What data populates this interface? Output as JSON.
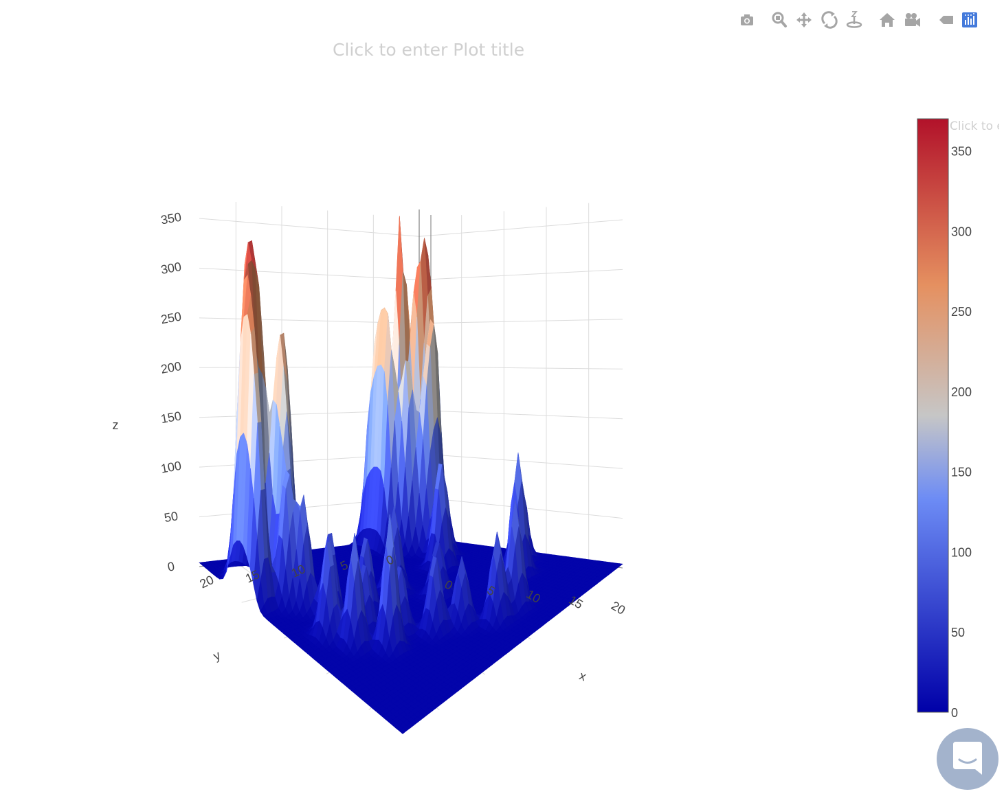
{
  "toolbar": {
    "buttons": [
      {
        "name": "camera-icon",
        "label": "Download plot as a png"
      },
      {
        "name": "zoom-icon",
        "label": "Zoom"
      },
      {
        "name": "pan-icon",
        "label": "Pan"
      },
      {
        "name": "orbit-rotation-icon",
        "label": "Orbital rotation"
      },
      {
        "name": "turntable-rotation-icon",
        "label": "Turntable rotation"
      },
      {
        "name": "home-icon",
        "label": "Reset camera to default"
      },
      {
        "name": "video-camera-icon",
        "label": "Reset camera to last save"
      },
      {
        "name": "hover-tag-icon",
        "label": "Toggle show closest data on hover"
      },
      {
        "name": "plotly-logo-icon",
        "label": "Produced with Plotly"
      }
    ],
    "icon_color": "#a5a5a5",
    "logo_color": "#447adb"
  },
  "plot_title_placeholder": "Click to enter Plot title",
  "colorbar_title_placeholder": "Click to enter",
  "chart_data": {
    "type": "surface",
    "colorscale": [
      [
        0,
        "#0000a8"
      ],
      [
        0.36,
        "#6d8cf5"
      ],
      [
        0.5,
        "#c6c6c6"
      ],
      [
        0.72,
        "#e59060"
      ],
      [
        1,
        "#b2122a"
      ]
    ],
    "x": {
      "label": "x",
      "ticks": [
        0,
        5,
        10,
        15,
        20
      ],
      "range": [
        0,
        24
      ]
    },
    "y": {
      "label": "y",
      "ticks": [
        0,
        5,
        10,
        15,
        20
      ],
      "range": [
        0,
        24
      ]
    },
    "z": {
      "label": "z",
      "ticks": [
        0,
        50,
        100,
        150,
        200,
        250,
        300,
        350
      ],
      "range": [
        0,
        370
      ]
    },
    "colorbar": {
      "ticks": [
        0,
        50,
        100,
        150,
        200,
        250,
        300,
        350
      ],
      "range": [
        0,
        370
      ]
    },
    "peaks": [
      {
        "x": 2,
        "y": 4,
        "z": 365
      },
      {
        "x": 3,
        "y": 3,
        "z": 250
      },
      {
        "x": 3,
        "y": 2,
        "z": 240
      },
      {
        "x": 5,
        "y": 3,
        "z": 230
      },
      {
        "x": 4,
        "y": 5,
        "z": 210
      },
      {
        "x": 3,
        "y": 6,
        "z": 205
      },
      {
        "x": 2,
        "y": 6,
        "z": 195
      },
      {
        "x": 1,
        "y": 6,
        "z": 170
      },
      {
        "x": 4,
        "y": 2,
        "z": 170
      },
      {
        "x": 5,
        "y": 4,
        "z": 150
      },
      {
        "x": 7,
        "y": 4,
        "z": 100
      },
      {
        "x": 9,
        "y": 6,
        "z": 120
      },
      {
        "x": 10,
        "y": 12,
        "z": 90
      },
      {
        "x": 13,
        "y": 10,
        "z": 60
      },
      {
        "x": 16,
        "y": 4,
        "z": 130
      },
      {
        "x": 14,
        "y": 2,
        "z": 100
      },
      {
        "x": 5,
        "y": 19,
        "z": 170
      },
      {
        "x": 5,
        "y": 20,
        "z": 190
      },
      {
        "x": 4,
        "y": 21,
        "z": 200
      },
      {
        "x": 4,
        "y": 22,
        "z": 200
      },
      {
        "x": 3,
        "y": 22,
        "z": 210
      },
      {
        "x": 5,
        "y": 23,
        "z": 225
      },
      {
        "x": 4,
        "y": 23,
        "z": 200
      },
      {
        "x": 3,
        "y": 21,
        "z": 170
      },
      {
        "x": 6,
        "y": 23,
        "z": 150
      },
      {
        "x": 6,
        "y": 20,
        "z": 140
      },
      {
        "x": 7,
        "y": 21,
        "z": 130
      },
      {
        "x": 8,
        "y": 20,
        "z": 110
      },
      {
        "x": 10,
        "y": 19,
        "z": 90
      },
      {
        "x": 11,
        "y": 16,
        "z": 80
      },
      {
        "x": 12,
        "y": 21,
        "z": 100
      },
      {
        "x": 13,
        "y": 18,
        "z": 70
      },
      {
        "x": 14,
        "y": 20,
        "z": 110
      },
      {
        "x": 15,
        "y": 16,
        "z": 70
      },
      {
        "x": 16,
        "y": 18,
        "z": 130
      },
      {
        "x": 17,
        "y": 14,
        "z": 80
      },
      {
        "x": 18,
        "y": 12,
        "z": 70
      },
      {
        "x": 20,
        "y": 8,
        "z": 110
      },
      {
        "x": 20,
        "y": 10,
        "z": 90
      }
    ]
  }
}
